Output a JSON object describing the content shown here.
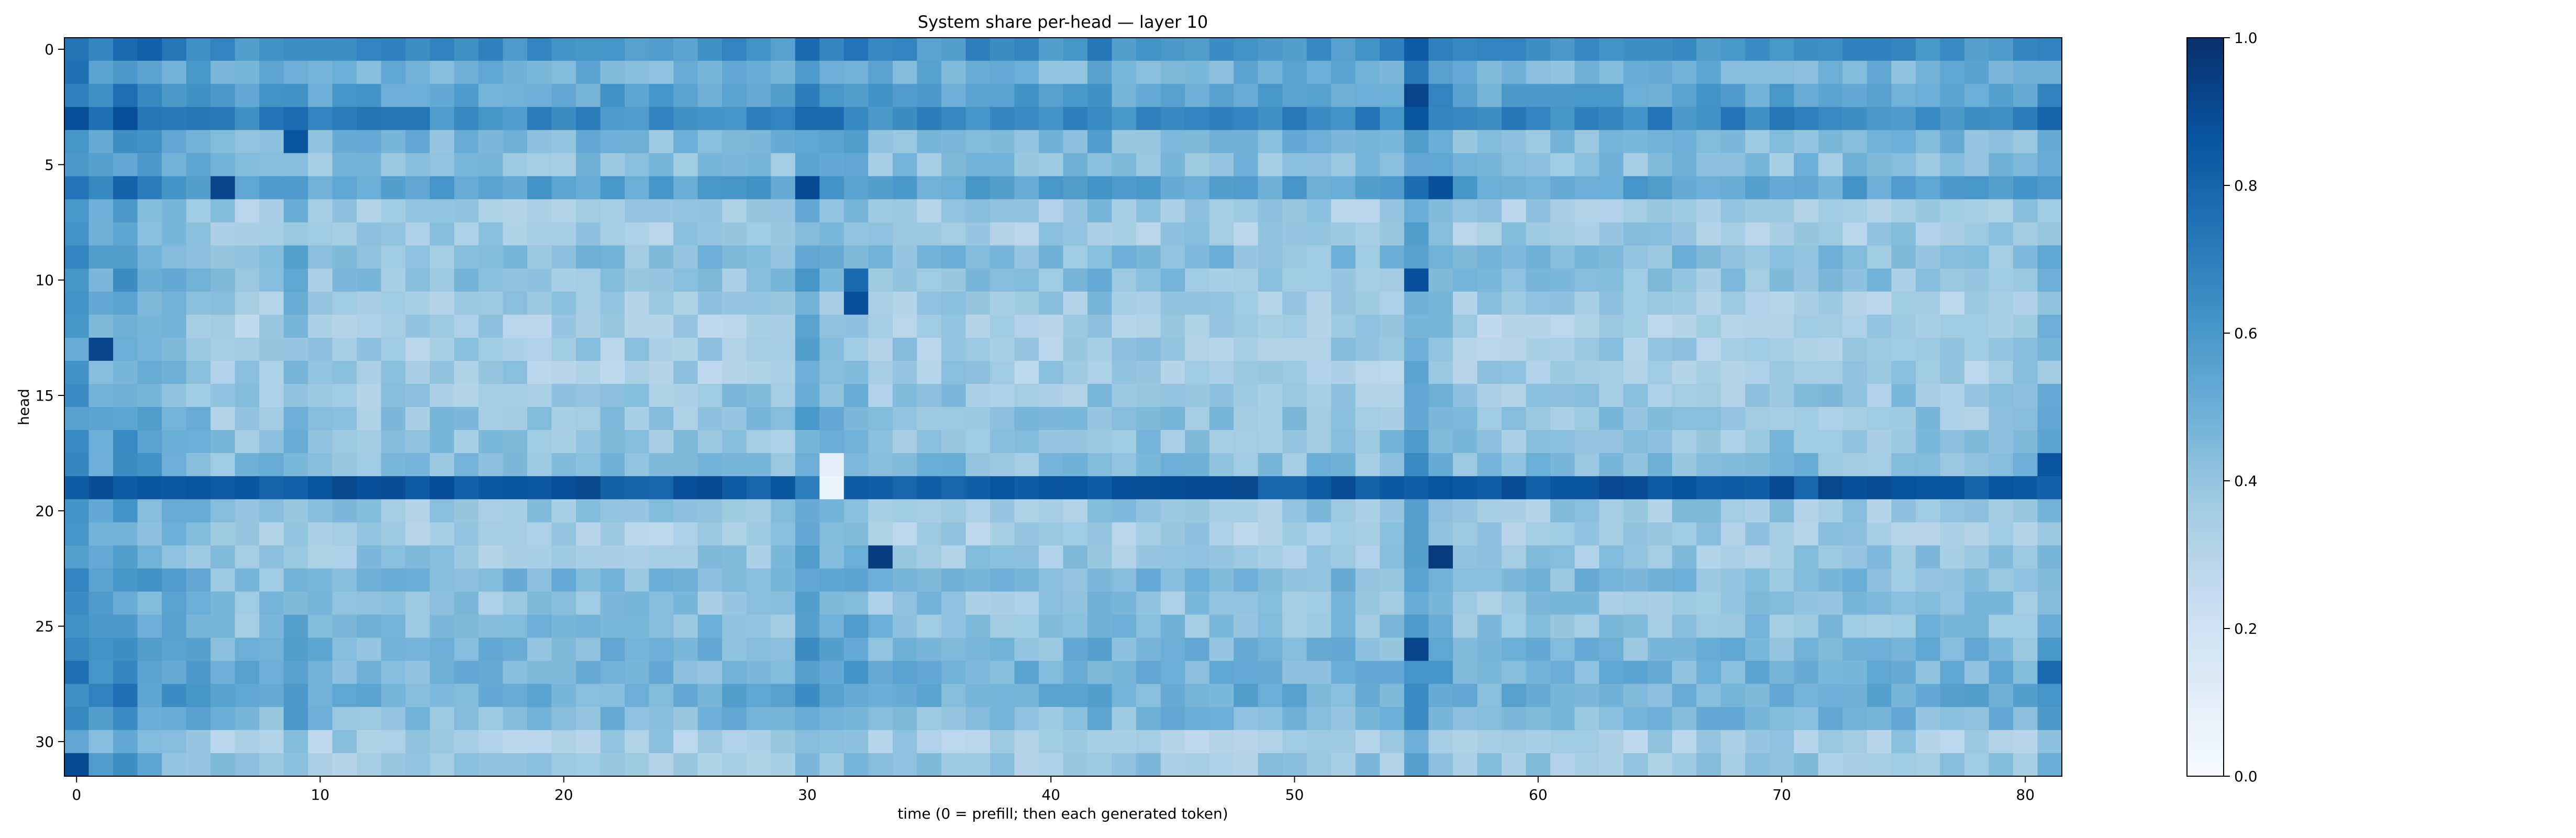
{
  "chart_data": {
    "type": "heatmap",
    "title": "System share per-head — layer 10",
    "xlabel": "time (0 = prefill; then each generated token)",
    "ylabel": "head",
    "x_range": [
      0,
      81
    ],
    "y_range": [
      0,
      31
    ],
    "x_ticks": [
      0,
      10,
      20,
      30,
      40,
      50,
      60,
      70,
      80
    ],
    "y_ticks": [
      0,
      5,
      10,
      15,
      20,
      25,
      30
    ],
    "n_time": 82,
    "n_heads": 32,
    "colormap": "Blues",
    "colorbar": {
      "min": 0.0,
      "max": 1.0,
      "ticks": [
        "0.0",
        "0.2",
        "0.4",
        "0.6",
        "0.8",
        "1.0"
      ]
    },
    "colors": {
      "low": "#f7fbff",
      "mid": "#6baed6",
      "high": "#08306b"
    },
    "head_base": [
      0.62,
      0.48,
      0.55,
      0.66,
      0.45,
      0.42,
      0.55,
      0.36,
      0.36,
      0.43,
      0.4,
      0.35,
      0.34,
      0.36,
      0.35,
      0.38,
      0.39,
      0.4,
      0.43,
      0.85,
      0.38,
      0.35,
      0.38,
      0.44,
      0.4,
      0.42,
      0.46,
      0.48,
      0.5,
      0.45,
      0.35,
      0.38
    ],
    "time_offsets": [
      {
        "t": 0,
        "delta": 0.2
      },
      {
        "t": 1,
        "delta": 0.12
      },
      {
        "t": 2,
        "delta": 0.18
      },
      {
        "t": 3,
        "delta": 0.12
      },
      {
        "t": 4,
        "delta": 0.08
      },
      {
        "t": 5,
        "delta": 0.06
      },
      {
        "t": 9,
        "delta": 0.08
      },
      {
        "t": 30,
        "delta": 0.14
      },
      {
        "t": 31,
        "delta": 0.06
      },
      {
        "t": 32,
        "delta": 0.08
      },
      {
        "t": 42,
        "delta": 0.05
      },
      {
        "t": 55,
        "delta": 0.18
      },
      {
        "t": 56,
        "delta": 0.06
      },
      {
        "t": 81,
        "delta": 0.08
      }
    ],
    "highlights": [
      {
        "head": 2,
        "t": 55,
        "value": 0.92
      },
      {
        "head": 3,
        "t": 55,
        "value": 0.86
      },
      {
        "head": 10,
        "t": 55,
        "value": 0.88
      },
      {
        "head": 11,
        "t": 32,
        "value": 0.88
      },
      {
        "head": 10,
        "t": 32,
        "value": 0.78
      },
      {
        "head": 22,
        "t": 33,
        "value": 0.95
      },
      {
        "head": 22,
        "t": 56,
        "value": 0.96
      },
      {
        "head": 18,
        "t": 81,
        "value": 0.86
      },
      {
        "head": 18,
        "t": 31,
        "value": 0.1
      },
      {
        "head": 19,
        "t": 31,
        "value": 0.05
      },
      {
        "head": 19,
        "t": 30,
        "value": 0.7
      },
      {
        "head": 6,
        "t": 6,
        "value": 0.92
      },
      {
        "head": 6,
        "t": 30,
        "value": 0.9
      },
      {
        "head": 6,
        "t": 56,
        "value": 0.88
      },
      {
        "head": 4,
        "t": 9,
        "value": 0.86
      },
      {
        "head": 26,
        "t": 55,
        "value": 0.92
      },
      {
        "head": 27,
        "t": 81,
        "value": 0.78
      },
      {
        "head": 13,
        "t": 1,
        "value": 0.92
      },
      {
        "head": 31,
        "t": 0,
        "value": 0.9
      },
      {
        "head": 19,
        "t": 37,
        "value": 0.82
      }
    ]
  }
}
